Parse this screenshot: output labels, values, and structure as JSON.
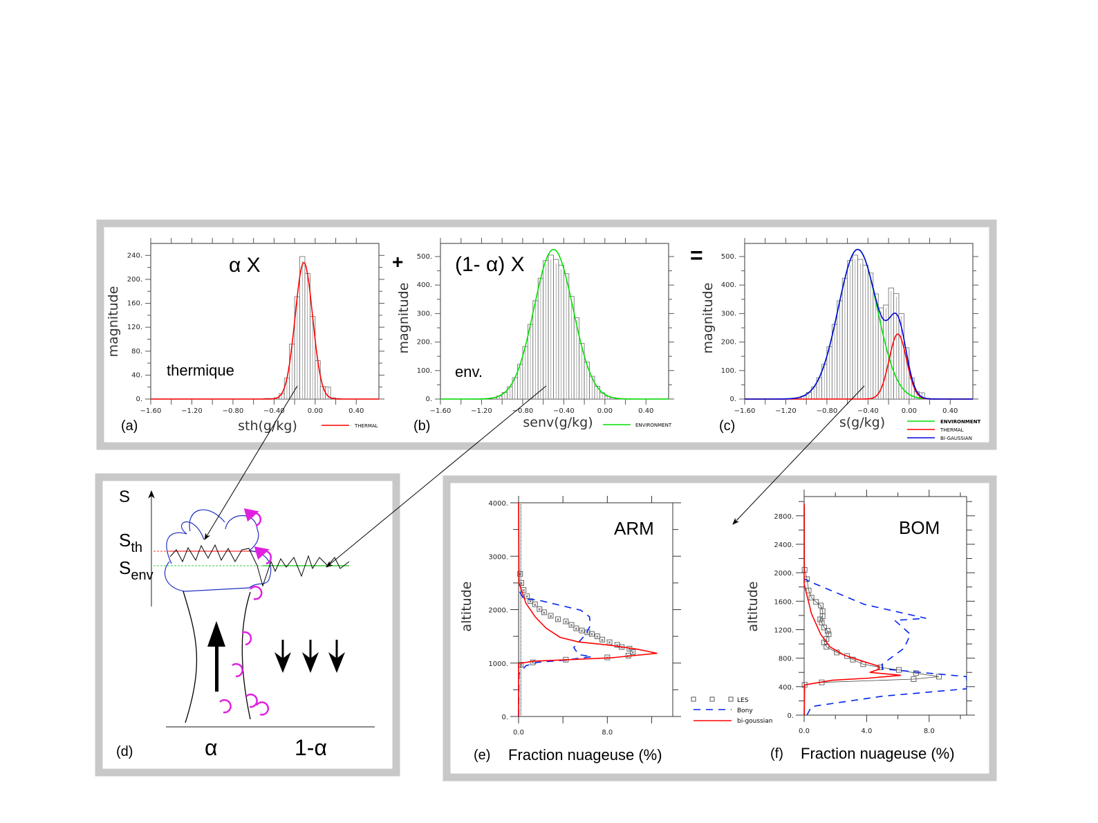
{
  "operators": {
    "plus": "+",
    "equals": "="
  },
  "panels": {
    "a": {
      "label": "(a)",
      "factor": "α X",
      "annotation": "thermique",
      "xlabel": "sth(g/kg)",
      "ylabel": "magnitude",
      "legend": [
        "THERMAL"
      ]
    },
    "b": {
      "label": "(b)",
      "factor": "(1- α) X",
      "annotation": "env.",
      "xlabel": "senv(g/kg)",
      "ylabel": "magnitude",
      "legend": [
        "ENVIRONMENT"
      ]
    },
    "c": {
      "label": "(c)",
      "xlabel": "s(g/kg)",
      "ylabel": "magnitude",
      "legend": [
        "ENVIRONMENT",
        "THERMAL",
        "BI-GAUSSIAN"
      ]
    },
    "d": {
      "label": "(d)",
      "s_axis": "S",
      "s_th": "S",
      "s_th_sub": "th",
      "s_env": "S",
      "s_env_sub": "env",
      "alpha": "α",
      "one_minus_alpha": "1-α"
    },
    "e": {
      "label": "(e)",
      "title": "ARM",
      "xlabel": "Fraction nuageuse (%)",
      "ylabel": "altitude"
    },
    "f": {
      "label": "(f)",
      "title": "BOM",
      "xlabel": "Fraction nuageuse (%)",
      "ylabel": "altitude"
    },
    "ef_legend": [
      "LES",
      "Bony",
      "bi-goussian"
    ]
  },
  "colors": {
    "thermal": "#ff0000",
    "environment": "#00e000",
    "bigaussian": "#0000e0",
    "bony": "#0022ee",
    "les": "#555555",
    "eddy": "#e020e0",
    "frame": "#c8c8c8"
  },
  "chart_data": [
    {
      "id": "a",
      "type": "bar",
      "xlabel": "sth(g/kg)",
      "ylabel": "magnitude",
      "xlim": [
        -1.6,
        0.62
      ],
      "ylim": [
        0,
        260
      ],
      "xticks": [
        "-1.60",
        "-1.20",
        "-0.80",
        "-0.40",
        "0.00",
        "0.40"
      ],
      "yticks": [
        "0.",
        "40.",
        "80.",
        "120.",
        "160.",
        "200.",
        "240."
      ],
      "bin_width": 0.05,
      "bin_centers": [
        -0.475,
        -0.425,
        -0.375,
        -0.325,
        -0.275,
        -0.225,
        -0.175,
        -0.125,
        -0.075,
        -0.025,
        0.025,
        0.075,
        0.125,
        0.175,
        0.225
      ],
      "values": [
        1,
        1,
        2,
        9,
        35,
        92,
        171,
        238,
        210,
        138,
        64,
        21,
        20,
        2,
        1
      ],
      "curves": [
        {
          "name": "THERMAL",
          "mean": -0.11,
          "sigma": 0.085,
          "peak": 228,
          "color": "#ff0000"
        }
      ]
    },
    {
      "id": "b",
      "type": "bar",
      "xlabel": "senv(g/kg)",
      "ylabel": "magnitude",
      "xlim": [
        -1.6,
        0.62
      ],
      "ylim": [
        0,
        546
      ],
      "xticks": [
        "-1.60",
        "-1.20",
        "-0.80",
        "-0.40",
        "0.00",
        "0.40"
      ],
      "yticks": [
        "0.",
        "100.",
        "200.",
        "300.",
        "400.",
        "500."
      ],
      "bin_width": 0.05,
      "bin_centers": [
        -1.075,
        -1.025,
        -0.975,
        -0.925,
        -0.875,
        -0.825,
        -0.775,
        -0.725,
        -0.675,
        -0.625,
        -0.575,
        -0.525,
        -0.475,
        -0.425,
        -0.375,
        -0.325,
        -0.275,
        -0.225,
        -0.175,
        -0.125,
        -0.075,
        -0.025,
        0.025,
        0.075,
        0.125
      ],
      "values": [
        5,
        11,
        23,
        43,
        75,
        122,
        184,
        262,
        345,
        424,
        486,
        505,
        490,
        470,
        440,
        360,
        285,
        195,
        130,
        80,
        45,
        22,
        10,
        5,
        2
      ],
      "curves": [
        {
          "name": "ENVIRONMENT",
          "mean": -0.5,
          "sigma": 0.19,
          "peak": 525,
          "color": "#00e000"
        }
      ]
    },
    {
      "id": "c",
      "type": "bar",
      "xlabel": "s(g/kg)",
      "ylabel": "magnitude",
      "xlim": [
        -1.6,
        0.62
      ],
      "ylim": [
        0,
        546
      ],
      "xticks": [
        "-1.60",
        "-1.20",
        "-0.80",
        "-0.40",
        "0.00",
        "0.40"
      ],
      "yticks": [
        "0.",
        "100.",
        "200.",
        "300.",
        "400.",
        "500."
      ],
      "bin_width": 0.05,
      "bin_centers": [
        -1.075,
        -1.025,
        -0.975,
        -0.925,
        -0.875,
        -0.825,
        -0.775,
        -0.725,
        -0.675,
        -0.625,
        -0.575,
        -0.525,
        -0.475,
        -0.425,
        -0.375,
        -0.325,
        -0.275,
        -0.225,
        -0.175,
        -0.125,
        -0.075,
        -0.025,
        0.025,
        0.075,
        0.125,
        0.175
      ],
      "values": [
        5,
        11,
        23,
        43,
        75,
        122,
        184,
        262,
        345,
        424,
        486,
        505,
        490,
        470,
        442,
        369,
        320,
        330,
        390,
        370,
        300,
        180,
        74,
        26,
        22,
        2
      ],
      "curves": [
        {
          "name": "ENVIRONMENT",
          "mean": -0.5,
          "sigma": 0.19,
          "peak": 525,
          "color": "#00e000"
        },
        {
          "name": "THERMAL",
          "mean": -0.11,
          "sigma": 0.085,
          "peak": 228,
          "color": "#ff0000"
        },
        {
          "name": "BI-GAUSSIAN",
          "sum_of": [
            "ENVIRONMENT",
            "THERMAL"
          ],
          "color": "#0000e0"
        }
      ]
    },
    {
      "id": "e",
      "type": "line",
      "title": "ARM",
      "xlabel": "Fraction nuageuse (%)",
      "ylabel": "altitude",
      "xlim": [
        0,
        13.9
      ],
      "ylim": [
        0,
        4000
      ],
      "xticks": [
        "0.0",
        "8.0"
      ],
      "yticks": [
        "0.",
        "1000.",
        "2000.",
        "3000.",
        "4000."
      ],
      "series": [
        {
          "name": "LES",
          "style": "squares",
          "points": [
            [
              0.2,
              0
            ],
            [
              0.2,
              970
            ],
            [
              1.28,
              1013
            ],
            [
              4.26,
              1064
            ],
            [
              8.0,
              1106
            ],
            [
              9.9,
              1140
            ],
            [
              10.3,
              1205
            ],
            [
              10.0,
              1270
            ],
            [
              9.3,
              1300
            ],
            [
              8.9,
              1340
            ],
            [
              8.2,
              1390
            ],
            [
              7.55,
              1440
            ],
            [
              7.1,
              1500
            ],
            [
              6.6,
              1545
            ],
            [
              6.2,
              1575
            ],
            [
              5.7,
              1610
            ],
            [
              5.2,
              1650
            ],
            [
              4.77,
              1715
            ],
            [
              4.26,
              1780
            ],
            [
              3.55,
              1820
            ],
            [
              2.9,
              1885
            ],
            [
              2.3,
              1950
            ],
            [
              1.89,
              2010
            ],
            [
              1.48,
              2100
            ],
            [
              1.07,
              2160
            ],
            [
              0.76,
              2250
            ],
            [
              0.45,
              2370
            ],
            [
              0.25,
              2500
            ],
            [
              0.14,
              2670
            ],
            [
              0.14,
              4000
            ]
          ]
        },
        {
          "name": "Bony",
          "style": "dashed",
          "points": [
            [
              0,
              0
            ],
            [
              0.04,
              800
            ],
            [
              0.66,
              950
            ],
            [
              1.7,
              1013
            ],
            [
              4.15,
              1055
            ],
            [
              6.6,
              1120
            ],
            [
              5.4,
              1160
            ],
            [
              4.98,
              1290
            ],
            [
              6.0,
              1523
            ],
            [
              6.45,
              1694
            ],
            [
              6.4,
              1865
            ],
            [
              5.6,
              1990
            ],
            [
              1.7,
              2183
            ],
            [
              0.45,
              2200
            ],
            [
              0,
              2375
            ]
          ]
        },
        {
          "name": "bi-goussian",
          "style": "solid",
          "points": [
            [
              0,
              0
            ],
            [
              0,
              990
            ],
            [
              1.3,
              1034
            ],
            [
              8.3,
              1098
            ],
            [
              12.5,
              1183
            ],
            [
              10.7,
              1260
            ],
            [
              8.3,
              1332
            ],
            [
              5.4,
              1396
            ],
            [
              3.75,
              1481
            ],
            [
              2.5,
              1650
            ],
            [
              1.5,
              1864
            ],
            [
              0.66,
              2120
            ],
            [
              0.04,
              2500
            ],
            [
              0,
              4000
            ]
          ]
        }
      ]
    },
    {
      "id": "f",
      "type": "line",
      "title": "BOM",
      "xlabel": "Fraction nuageuse (%)",
      "ylabel": "altitude",
      "xlim": [
        0,
        10.4
      ],
      "ylim": [
        0,
        3070
      ],
      "xticks": [
        "0.0",
        "4.0",
        "8.0"
      ],
      "yticks": [
        "0.",
        "400.",
        "800.",
        "1200.",
        "1600.",
        "2000.",
        "2400.",
        "2800."
      ],
      "series": [
        {
          "name": "LES",
          "style": "squares-line",
          "points": [
            [
              0.03,
              0
            ],
            [
              0.03,
              425
            ],
            [
              1.13,
              460
            ],
            [
              7.01,
              505
            ],
            [
              8.63,
              540
            ],
            [
              7.16,
              590
            ],
            [
              6.06,
              635
            ],
            [
              4.88,
              670
            ],
            [
              3.78,
              715
            ],
            [
              3.12,
              780
            ],
            [
              2.75,
              830
            ],
            [
              2.09,
              880
            ],
            [
              1.43,
              960
            ],
            [
              1.28,
              1020
            ],
            [
              1.43,
              1070
            ],
            [
              1.57,
              1135
            ],
            [
              1.5,
              1185
            ],
            [
              1.28,
              1230
            ],
            [
              1.13,
              1300
            ],
            [
              1.03,
              1345
            ],
            [
              1.18,
              1390
            ],
            [
              1.18,
              1460
            ],
            [
              1.06,
              1540
            ],
            [
              0.76,
              1590
            ],
            [
              0.47,
              1650
            ],
            [
              0.29,
              1750
            ],
            [
              0.18,
              1910
            ],
            [
              0.03,
              2040
            ],
            [
              0.03,
              2940
            ]
          ]
        },
        {
          "name": "Bony",
          "style": "dashed",
          "points": [
            [
              0.18,
              0
            ],
            [
              0.47,
              120
            ],
            [
              5.0,
              265
            ],
            [
              10.4,
              370
            ],
            [
              10.4,
              540
            ],
            [
              5.0,
              650
            ],
            [
              5.0,
              715
            ],
            [
              6.4,
              940
            ],
            [
              6.8,
              1135
            ],
            [
              5.8,
              1330
            ],
            [
              7.8,
              1360
            ],
            [
              3.85,
              1555
            ],
            [
              0.69,
              1845
            ],
            [
              0.03,
              1910
            ]
          ]
        },
        {
          "name": "bi-goussian",
          "style": "solid",
          "points": [
            [
              0,
              0
            ],
            [
              0.03,
              425
            ],
            [
              1.8,
              490
            ],
            [
              4.15,
              520
            ],
            [
              6.2,
              560
            ],
            [
              4.2,
              600
            ],
            [
              4.8,
              645
            ],
            [
              4.8,
              685
            ],
            [
              3.85,
              750
            ],
            [
              2.53,
              845
            ],
            [
              1.65,
              960
            ],
            [
              1.06,
              1135
            ],
            [
              0.47,
              1425
            ],
            [
              0.1,
              1750
            ],
            [
              0,
              1845
            ],
            [
              0,
              2975
            ]
          ]
        }
      ]
    }
  ]
}
